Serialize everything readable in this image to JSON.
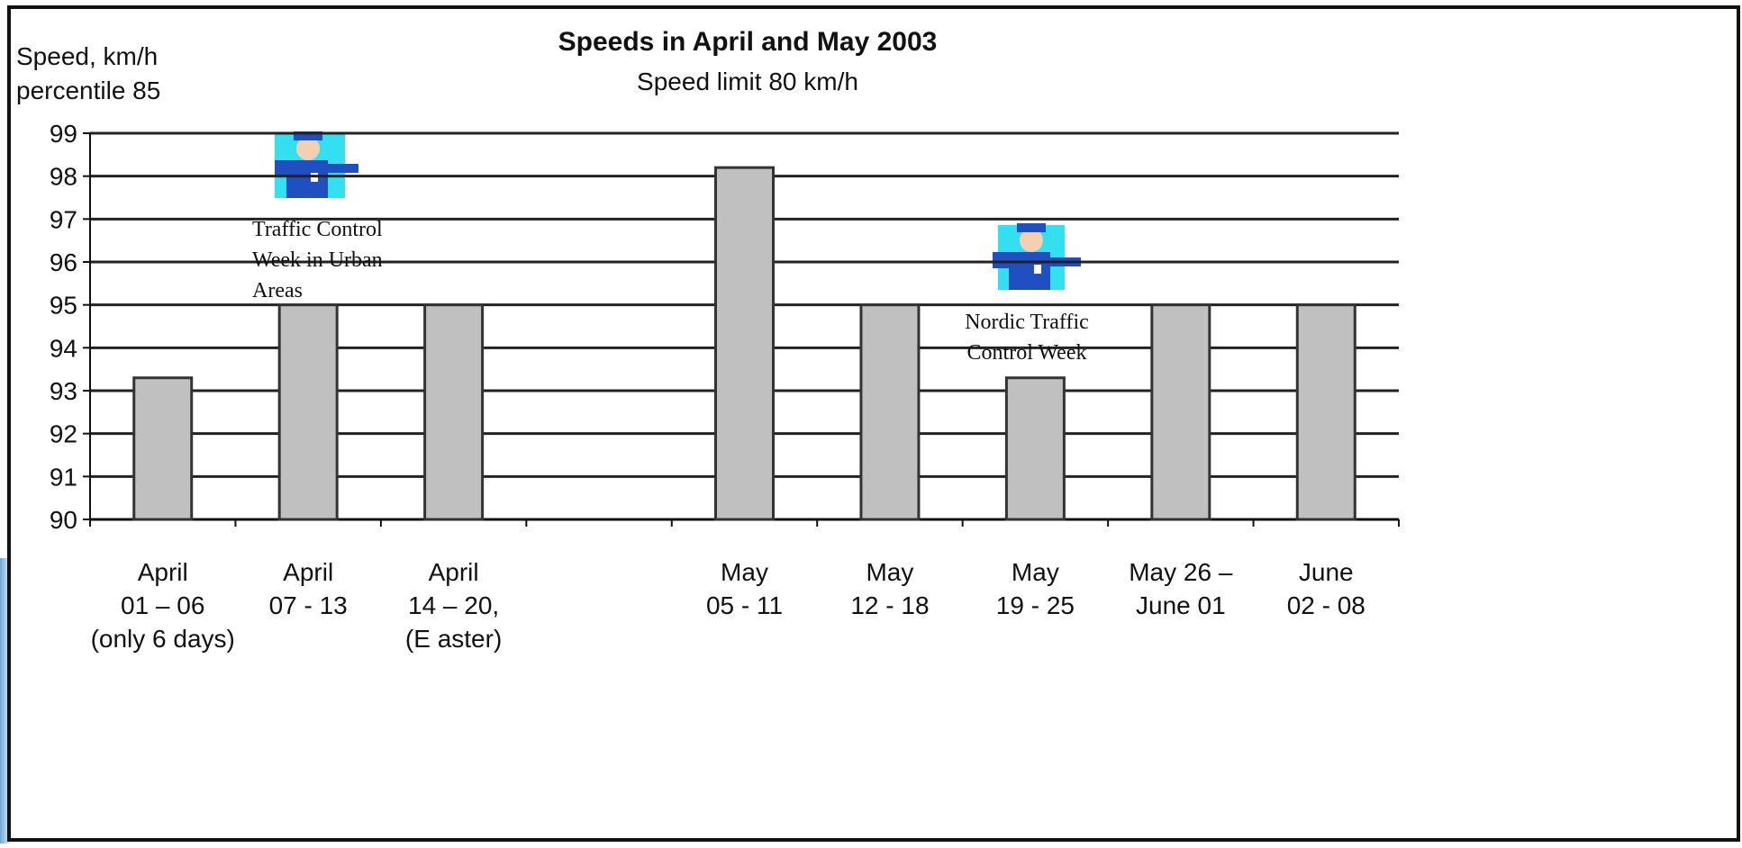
{
  "chart_data": {
    "type": "bar",
    "title": "Speeds in April and May 2003",
    "subtitle": "Speed limit 80 km/h",
    "y_label": [
      "Speed, km/h",
      "percentile 85"
    ],
    "categories": [
      [
        "April",
        "01 – 06",
        "(only 6 days)"
      ],
      [
        "April",
        "07 - 13"
      ],
      [
        "April",
        "14 – 20,",
        "(E aster)"
      ],
      null,
      [
        "May",
        "05 - 11"
      ],
      [
        "May",
        "12 - 18"
      ],
      [
        "May",
        "19 - 25"
      ],
      [
        "May 26 –",
        "June 01"
      ],
      [
        "June",
        "02 - 08"
      ]
    ],
    "values": [
      93.3,
      95,
      95,
      null,
      98.2,
      95,
      93.3,
      95,
      95
    ],
    "color": "#c0c0c0",
    "ylim": [
      90,
      99
    ],
    "yticks": [
      90,
      91,
      92,
      93,
      94,
      95,
      96,
      97,
      98,
      99
    ],
    "grid": true,
    "annotations": [
      {
        "lines": [
          "Traffic Control",
          "Week in Urban",
          "Areas"
        ]
      },
      {
        "lines": [
          "Nordic Traffic",
          "Control Week"
        ]
      }
    ]
  }
}
